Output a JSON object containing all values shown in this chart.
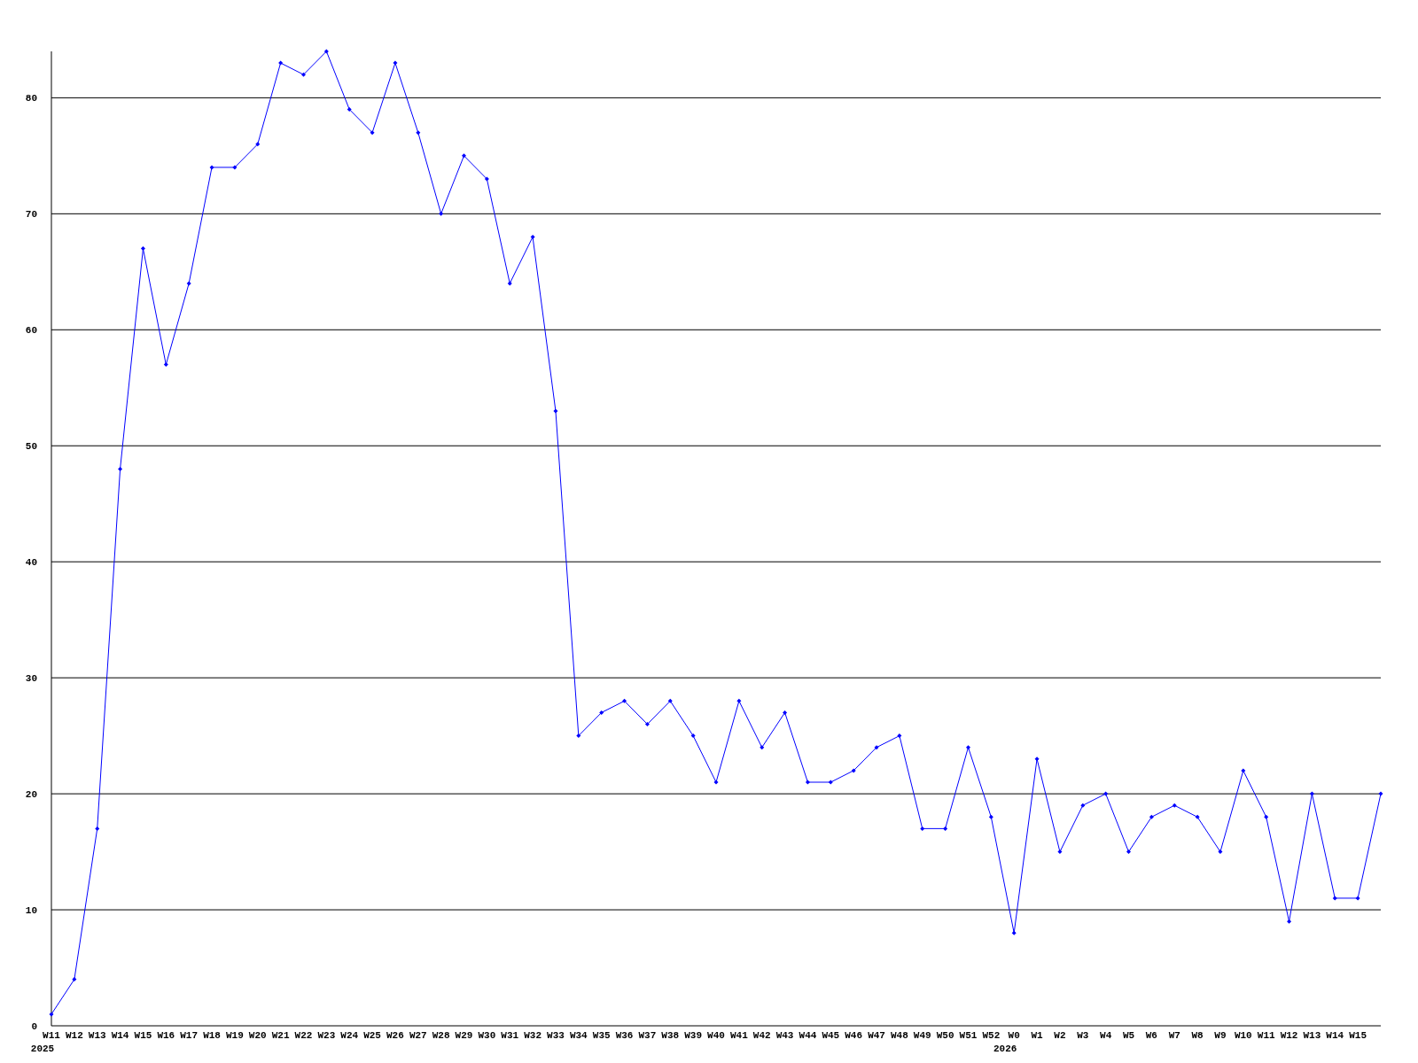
{
  "chart_data": {
    "type": "line",
    "categories": [
      "W11\n2025",
      "W12",
      "W13",
      "W14",
      "W15",
      "W16",
      "W17",
      "W18",
      "W19",
      "W20",
      "W21",
      "W22",
      "W23",
      "W24",
      "W25",
      "W26",
      "W27",
      "W28",
      "W29",
      "W30",
      "W31",
      "W32",
      "W33",
      "W34",
      "W35",
      "W36",
      "W37",
      "W38",
      "W39",
      "W40",
      "W41",
      "W42",
      "W43",
      "W44",
      "W45",
      "W46",
      "W47",
      "W48",
      "W49",
      "W50",
      "W51",
      "W52",
      "W0\n2026",
      "W1",
      "W2",
      "W3",
      "W4",
      "W5",
      "W6",
      "W7",
      "W8",
      "W9",
      "W10",
      "W11",
      "W12",
      "W13",
      "W14",
      "W15",
      null
    ],
    "series": [
      {
        "color": "#0000ff",
        "values": [
          1,
          4,
          17,
          48,
          67,
          57,
          64,
          74,
          74,
          76,
          83,
          82,
          84,
          79,
          77,
          83,
          77,
          70,
          75,
          73,
          64,
          68,
          53,
          25,
          27,
          28,
          26,
          28,
          25,
          21,
          28,
          24,
          27,
          21,
          21,
          22,
          24,
          25,
          17,
          17,
          24,
          18,
          8,
          23,
          15,
          19,
          20,
          15,
          18,
          19,
          18,
          15,
          22,
          18,
          9,
          20,
          11,
          11,
          20
        ]
      }
    ],
    "ylim": [
      0,
      84
    ],
    "yticks": [
      0,
      10,
      20,
      30,
      40,
      50,
      60,
      70,
      80
    ],
    "grid": "y",
    "marker": "diamond",
    "line_style": "solid"
  }
}
